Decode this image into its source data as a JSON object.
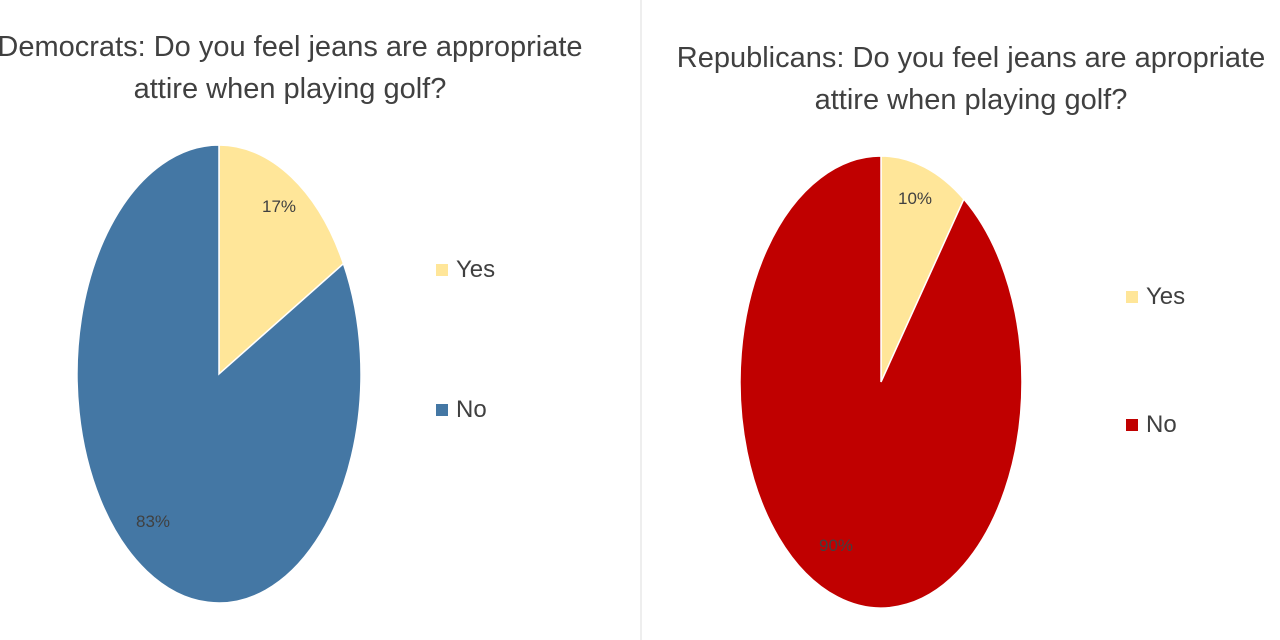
{
  "chart_data": [
    {
      "type": "pie",
      "title": "Democrats: Do you feel jeans are appropriate attire when playing golf?",
      "categories": [
        "Yes",
        "No"
      ],
      "values": [
        17,
        83
      ],
      "labels": [
        "17%",
        "83%"
      ],
      "colors": [
        "#FFE699",
        "#4477A4"
      ],
      "legend": "right"
    },
    {
      "type": "pie",
      "title": "Republicans: Do you feel jeans are apropriate attire when playing golf?",
      "categories": [
        "Yes",
        "No"
      ],
      "values": [
        10,
        90
      ],
      "labels": [
        "10%",
        "90%"
      ],
      "colors": [
        "#FFE699",
        "#C00000"
      ],
      "legend": "right"
    }
  ]
}
